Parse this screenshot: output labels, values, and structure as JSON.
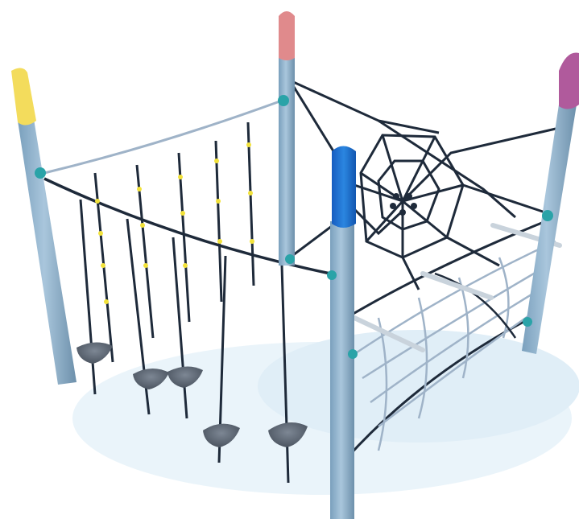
{
  "scene": {
    "subject": "playground-rope-climbing-structure",
    "colors": {
      "background": "#ffffff",
      "post": "#8fb2cc",
      "post_shadow": "#6f93b0",
      "cap_yellow": "#f3dc5c",
      "cap_pink": "#e08a8c",
      "cap_magenta": "#b05a9c",
      "cap_blue": "#1e6fd0",
      "rope_dark": "#1e2a3a",
      "rope_light": "#9fb3c8",
      "connector": "#2aa3a8",
      "bead": "#f2e23a",
      "stepping_disc": "#5a6470",
      "rung": "#c9d3dc",
      "ground_shadow": "#dfeef6"
    }
  }
}
